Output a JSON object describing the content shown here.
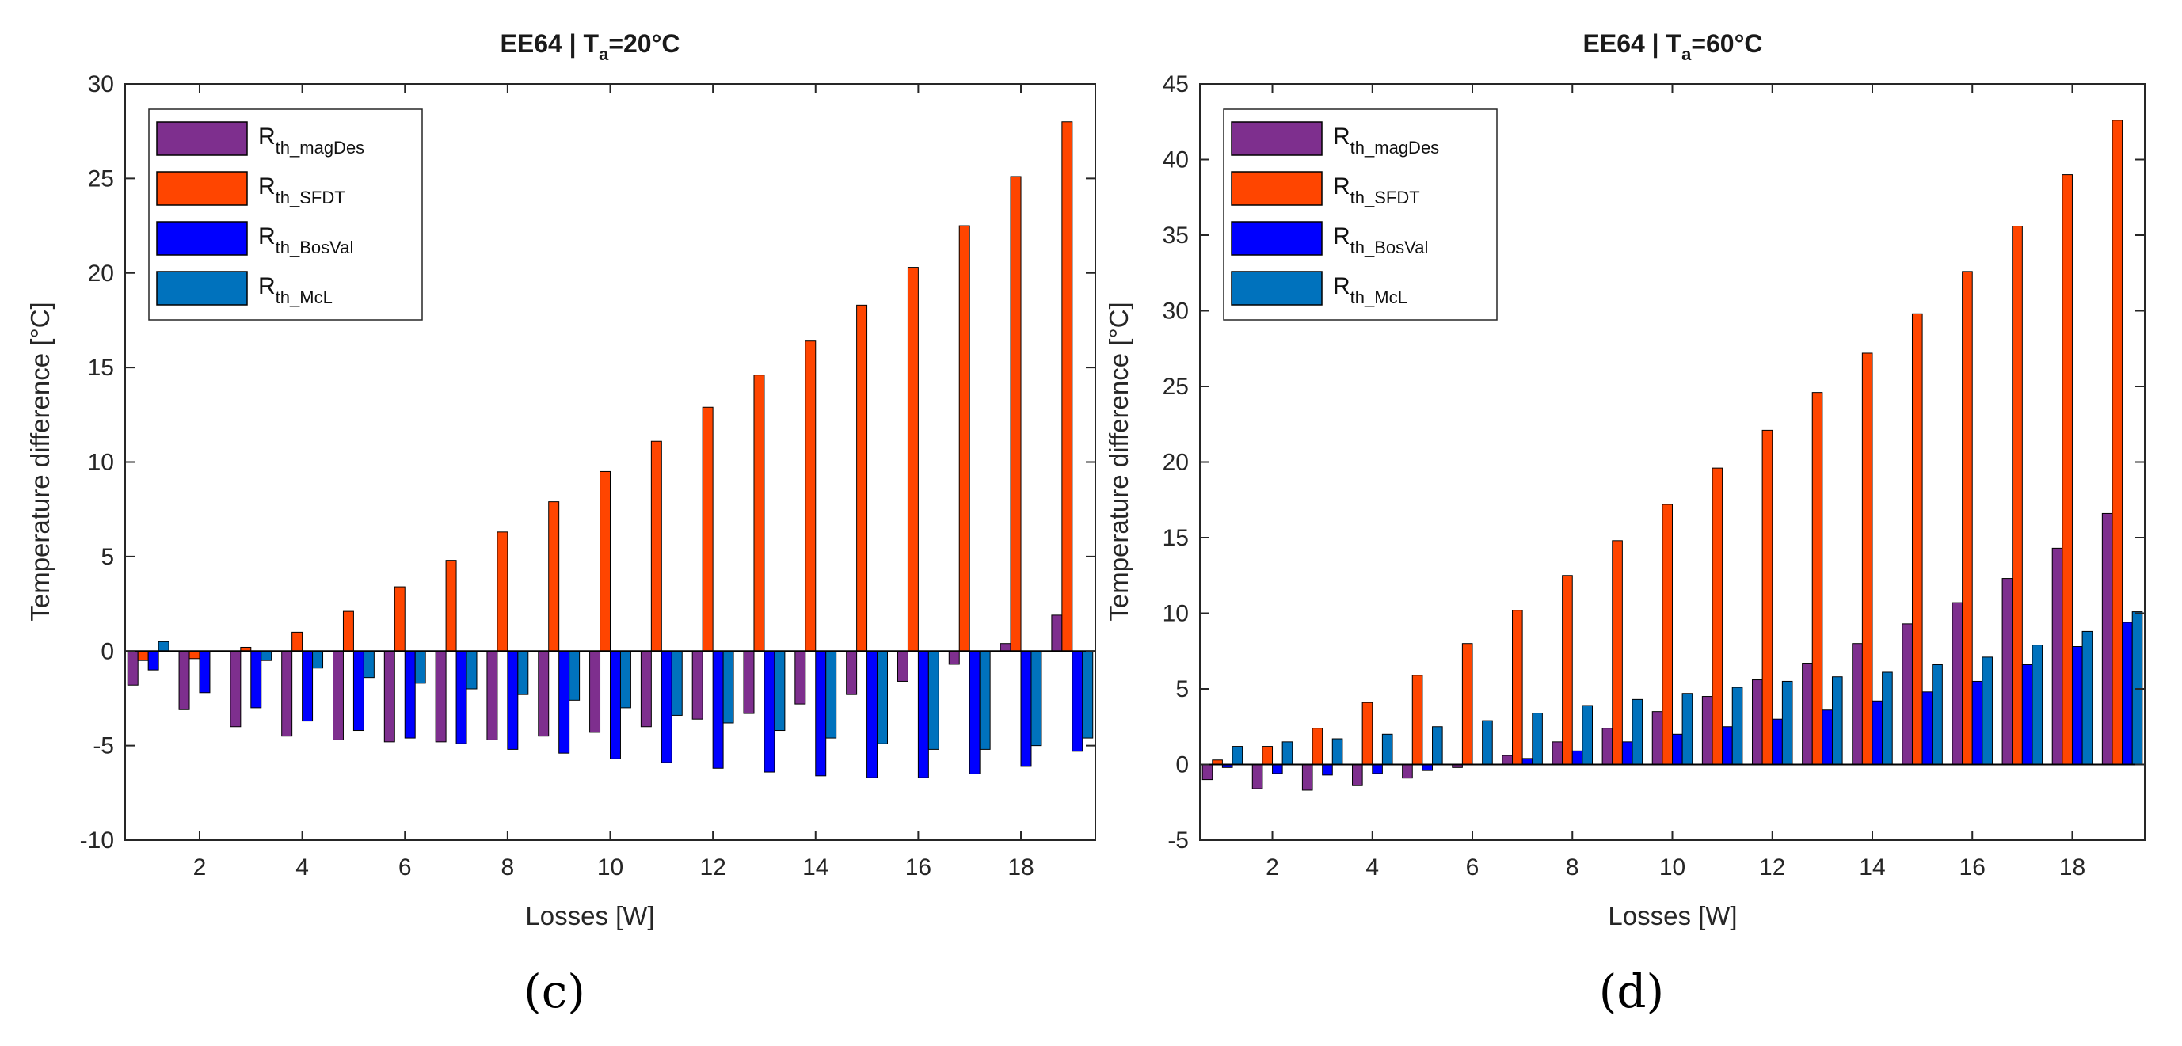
{
  "chart_data": [
    {
      "type": "bar",
      "title_main": "EE64 | T",
      "title_sub": "a",
      "title_tail": "=20°C",
      "xlabel": "Losses [W]",
      "ylabel": "Temperature difference [°C]",
      "ylim": [
        -10,
        30
      ],
      "yticks": [
        -10,
        -5,
        0,
        5,
        10,
        15,
        20,
        25,
        30
      ],
      "xticks": [
        2,
        4,
        6,
        8,
        10,
        12,
        14,
        16,
        18
      ],
      "x": [
        1,
        2,
        3,
        4,
        5,
        6,
        7,
        8,
        9,
        10,
        11,
        12,
        13,
        14,
        15,
        16,
        17,
        18,
        19
      ],
      "legend_position": "top-left",
      "grid": false,
      "panel_label": "(c)",
      "series": [
        {
          "name_main": "R",
          "name_sub": "th_magDes",
          "color": "#7E2F8E",
          "values": [
            -1.8,
            -3.1,
            -4.0,
            -4.5,
            -4.7,
            -4.8,
            -4.8,
            -4.7,
            -4.5,
            -4.3,
            -4.0,
            -3.6,
            -3.3,
            -2.8,
            -2.3,
            -1.6,
            -0.7,
            0.4,
            1.9
          ]
        },
        {
          "name_main": "R",
          "name_sub": "th_SFDT",
          "color": "#FF4500",
          "values": [
            -0.5,
            -0.4,
            0.2,
            1.0,
            2.1,
            3.4,
            4.8,
            6.3,
            7.9,
            9.5,
            11.1,
            12.9,
            14.6,
            16.4,
            18.3,
            20.3,
            22.5,
            25.1,
            28.0
          ]
        },
        {
          "name_main": "R",
          "name_sub": "th_BosVal",
          "color": "#0000FF",
          "values": [
            -1.0,
            -2.2,
            -3.0,
            -3.7,
            -4.2,
            -4.6,
            -4.9,
            -5.2,
            -5.4,
            -5.7,
            -5.9,
            -6.2,
            -6.4,
            -6.6,
            -6.7,
            -6.7,
            -6.5,
            -6.1,
            -5.3
          ]
        },
        {
          "name_main": "R",
          "name_sub": "th_McL",
          "color": "#0072BD",
          "values": [
            0.5,
            0.0,
            -0.5,
            -0.9,
            -1.4,
            -1.7,
            -2.0,
            -2.3,
            -2.6,
            -3.0,
            -3.4,
            -3.8,
            -4.2,
            -4.6,
            -4.9,
            -5.2,
            -5.2,
            -5.0,
            -4.6
          ]
        }
      ]
    },
    {
      "type": "bar",
      "title_main": "EE64 | T",
      "title_sub": "a",
      "title_tail": "=60°C",
      "xlabel": "Losses [W]",
      "ylabel": "Temperature difference [°C]",
      "ylim": [
        -5,
        45
      ],
      "yticks": [
        -5,
        0,
        5,
        10,
        15,
        20,
        25,
        30,
        35,
        40,
        45
      ],
      "xticks": [
        2,
        4,
        6,
        8,
        10,
        12,
        14,
        16,
        18
      ],
      "x": [
        1,
        2,
        3,
        4,
        5,
        6,
        7,
        8,
        9,
        10,
        11,
        12,
        13,
        14,
        15,
        16,
        17,
        18,
        19
      ],
      "legend_position": "top-left",
      "grid": false,
      "panel_label": "(d)",
      "series": [
        {
          "name_main": "R",
          "name_sub": "th_magDes",
          "color": "#7E2F8E",
          "values": [
            -1.0,
            -1.6,
            -1.7,
            -1.4,
            -0.9,
            -0.2,
            0.6,
            1.5,
            2.4,
            3.5,
            4.5,
            5.6,
            6.7,
            8.0,
            9.3,
            10.7,
            12.3,
            14.3,
            16.6
          ]
        },
        {
          "name_main": "R",
          "name_sub": "th_SFDT",
          "color": "#FF4500",
          "values": [
            0.3,
            1.2,
            2.4,
            4.1,
            5.9,
            8.0,
            10.2,
            12.5,
            14.8,
            17.2,
            19.6,
            22.1,
            24.6,
            27.2,
            29.8,
            32.6,
            35.6,
            39.0,
            42.6
          ]
        },
        {
          "name_main": "R",
          "name_sub": "th_BosVal",
          "color": "#0000FF",
          "values": [
            -0.2,
            -0.6,
            -0.7,
            -0.6,
            -0.4,
            0.0,
            0.4,
            0.9,
            1.5,
            2.0,
            2.5,
            3.0,
            3.6,
            4.2,
            4.8,
            5.5,
            6.6,
            7.8,
            9.4
          ]
        },
        {
          "name_main": "R",
          "name_sub": "th_McL",
          "color": "#0072BD",
          "values": [
            1.2,
            1.5,
            1.7,
            2.0,
            2.5,
            2.9,
            3.4,
            3.9,
            4.3,
            4.7,
            5.1,
            5.5,
            5.8,
            6.1,
            6.6,
            7.1,
            7.9,
            8.8,
            10.1
          ]
        }
      ]
    }
  ]
}
